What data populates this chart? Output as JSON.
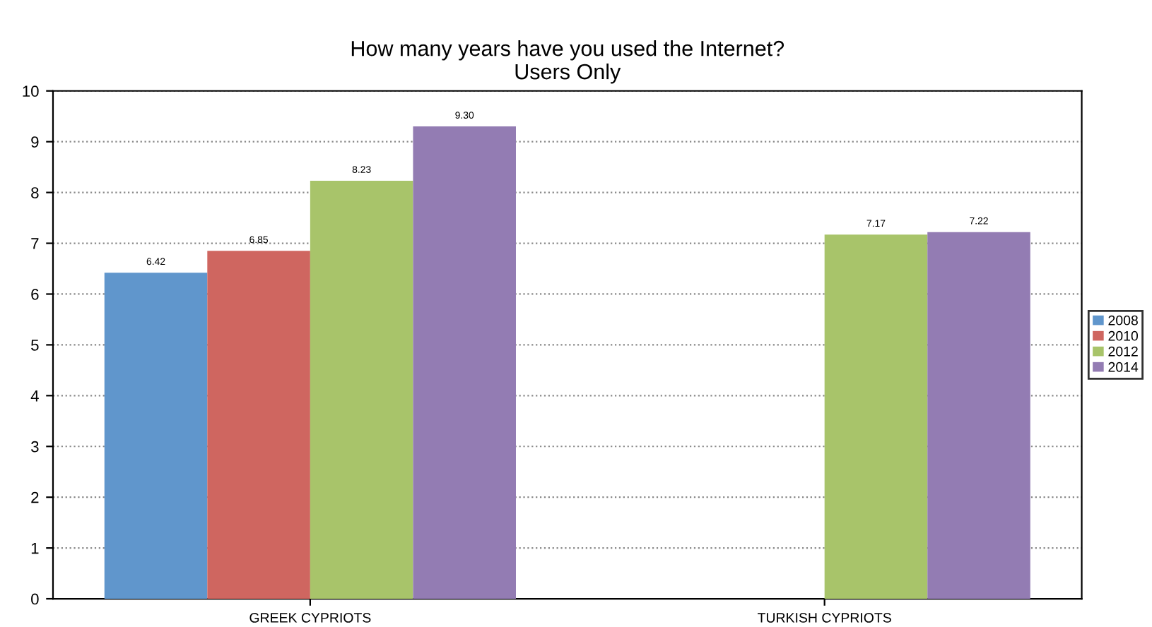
{
  "chart_data": {
    "type": "bar",
    "title": "How many years have you used the Internet?\nUsers Only",
    "categories": [
      "GREEK CYPRIOTS",
      "TURKISH CYPRIOTS"
    ],
    "series": [
      {
        "name": "2008",
        "color": "#6096cc",
        "values": [
          6.42,
          null
        ],
        "value_labels": [
          "6.42",
          null
        ]
      },
      {
        "name": "2010",
        "color": "#cf6660",
        "values": [
          6.85,
          null
        ],
        "value_labels": [
          "6.85",
          null
        ]
      },
      {
        "name": "2012",
        "color": "#a8c46a",
        "values": [
          8.23,
          7.17
        ],
        "value_labels": [
          "8.23",
          "7.17"
        ]
      },
      {
        "name": "2014",
        "color": "#937cb3",
        "values": [
          9.3,
          7.22
        ],
        "value_labels": [
          "9.30",
          "7.22"
        ]
      }
    ],
    "ylim": [
      0,
      10
    ],
    "yticks": [
      0,
      1,
      2,
      3,
      4,
      5,
      6,
      7,
      8,
      9,
      10
    ],
    "grid": "y",
    "legend": "right"
  }
}
